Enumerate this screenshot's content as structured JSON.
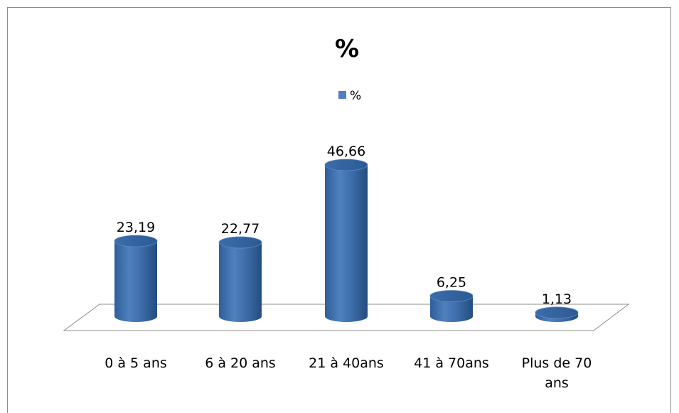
{
  "chart_data": {
    "type": "bar",
    "style": "3d-cylinder",
    "title": "%",
    "categories": [
      "0 à 5 ans",
      "6 à 20 ans",
      "21 à 40ans",
      "41 à 70ans",
      "Plus de 70 ans"
    ],
    "series": [
      {
        "name": "%",
        "values": [
          23.19,
          22.77,
          46.66,
          6.25,
          1.13
        ],
        "color": "#4f81bd"
      }
    ],
    "data_labels": [
      "23,19",
      "22,77",
      "46,66",
      "6,25",
      "1,13"
    ],
    "legend_position": "top",
    "grid": false,
    "ylim": [
      0,
      50
    ]
  }
}
